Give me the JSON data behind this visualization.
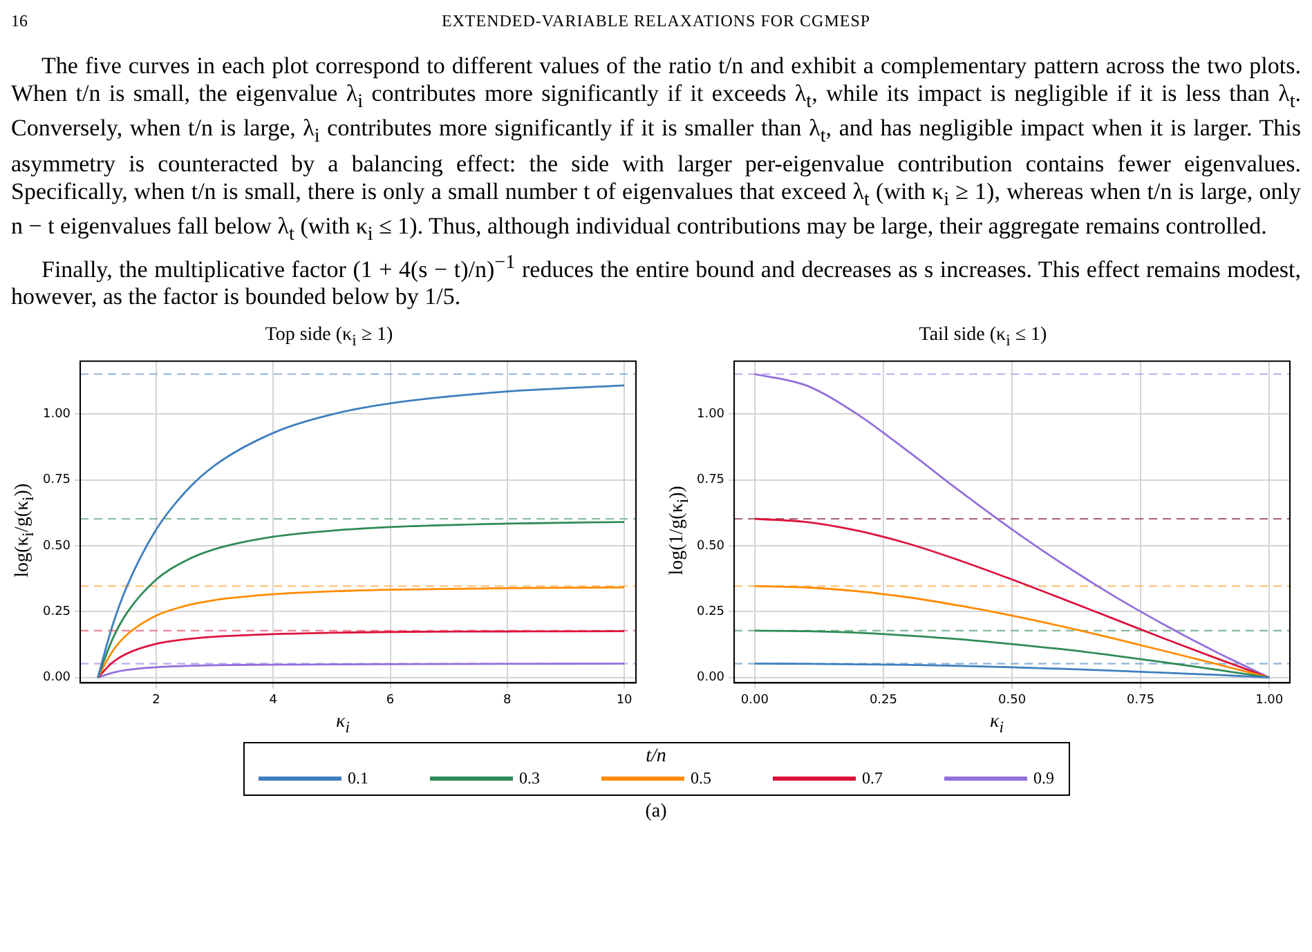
{
  "chart_data": [
    {
      "type": "line",
      "title": "Top side (κ$_{i}$ ≥ 1)",
      "xlabel": "κ$_{i}$",
      "ylabel": "log(κ$_{i}$/g(κ$_{i}$))",
      "legend_title": "t/n",
      "legend": "bottom",
      "grid": true,
      "marker": "none",
      "line_style": "solid",
      "annotations": [
        "16",
        "EXTENDED-VARIABLE RELAXATIONS FOR CGMESP",
        "The five curves in each plot correspond to different values of the ratio t/n and exhibit a complementary pattern across the two plots. When t/n is small, the eigenvalue λ$_{i}$ contributes more significantly if it exceeds λ$_{t}$, while its impact is negligible if it is less than λ$_{t}$. Conversely, when t/n is large, λ$_{i}$ contributes more significantly if it is smaller than λ$_{t}$, and has negligible impact when it is larger. This asymmetry is counteracted by a balancing effect: the side with larger per-eigenvalue contribution contains fewer eigenvalues. Specifically, when t/n is small, there is only a small number t of eigenvalues that exceed λ$_{t}$ (with κ$_{i}$ ≥ 1), whereas when t/n is large, only n − t eigenvalues fall below λ$_{t}$ (with κ$_{i}$ ≤ 1). Thus, although individual contributions may be large, their aggregate remains controlled.",
        "Finally, the multiplicative factor (1 + 4(s − t)/n)$^{−1}$ reduces the entire bound and decreases as s increases. This effect remains modest, however, as the factor is bounded below by 1/5.",
        "(a)"
      ],
      "x": [
        1,
        1.25,
        1.5,
        2,
        2.5,
        3,
        4,
        5,
        6,
        8,
        10
      ],
      "series": [
        {
          "name": "0.1",
          "color": "#3f7fbf",
          "values": [
            0,
            0.196,
            0.347,
            0.562,
            0.705,
            0.805,
            0.928,
            0.998,
            1.04,
            1.085,
            1.108
          ]
        },
        {
          "name": "0.3",
          "color": "#2e8b57",
          "values": [
            0,
            0.145,
            0.246,
            0.372,
            0.443,
            0.487,
            0.534,
            0.557,
            0.571,
            0.584,
            0.59
          ]
        },
        {
          "name": "0.5",
          "color": "#ff8c00",
          "values": [
            0,
            0.099,
            0.163,
            0.235,
            0.272,
            0.294,
            0.316,
            0.327,
            0.333,
            0.339,
            0.342
          ]
        },
        {
          "name": "0.7",
          "color": "#dc143c",
          "values": [
            0,
            0.057,
            0.091,
            0.128,
            0.145,
            0.155,
            0.165,
            0.17,
            0.173,
            0.175,
            0.176
          ]
        },
        {
          "name": "0.9",
          "color": "#9370db",
          "values": [
            0,
            0.018,
            0.029,
            0.039,
            0.044,
            0.047,
            0.049,
            0.05,
            0.051,
            0.052,
            0.053
          ]
        }
      ],
      "ref_lines": [
        {
          "axis": "y",
          "value": 1.151,
          "color": "#8fb4d8",
          "line_style": "dashed"
        },
        {
          "axis": "y",
          "value": 0.602,
          "color": "#84b89a",
          "line_style": "dashed"
        },
        {
          "axis": "y",
          "value": 0.347,
          "color": "#ffc27a",
          "line_style": "dashed"
        },
        {
          "axis": "y",
          "value": 0.178,
          "color": "#ee8598",
          "line_style": "dashed"
        },
        {
          "axis": "y",
          "value": 0.053,
          "color": "#bfaaee",
          "line_style": "dashed"
        }
      ],
      "xlim": [
        0.7,
        10.2
      ],
      "xticks": [
        2,
        4,
        6,
        8,
        10
      ],
      "ylim": [
        -0.02,
        1.2
      ],
      "yticks": [
        {
          "value": 0,
          "label": "0.00"
        },
        {
          "value": 0.25,
          "label": "0.25"
        },
        {
          "value": 0.5,
          "label": "0.50"
        },
        {
          "value": 0.75,
          "label": "0.75"
        },
        {
          "value": 1,
          "label": "1.00"
        }
      ]
    },
    {
      "type": "line",
      "title": "Tail side (κ$_{i}$ ≤ 1)",
      "xlabel": "κ$_{i}$",
      "ylabel": "log(1/g(κ$_{i}$))",
      "grid": true,
      "marker": "none",
      "line_style": "solid",
      "x": [
        0,
        0.1,
        0.2,
        0.3,
        0.4,
        0.5,
        0.6,
        0.7,
        0.8,
        0.9,
        1
      ],
      "series": [
        {
          "color": "#3f7fbf",
          "values": [
            0.053,
            0.052,
            0.05,
            0.048,
            0.044,
            0.039,
            0.033,
            0.026,
            0.018,
            0.01,
            0
          ]
        },
        {
          "color": "#2e8b57",
          "values": [
            0.178,
            0.176,
            0.17,
            0.159,
            0.145,
            0.127,
            0.107,
            0.083,
            0.057,
            0.029,
            0
          ]
        },
        {
          "color": "#ff8c00",
          "values": [
            0.347,
            0.342,
            0.327,
            0.304,
            0.272,
            0.235,
            0.193,
            0.147,
            0.099,
            0.05,
            0
          ]
        },
        {
          "color": "#dc143c",
          "values": [
            0.602,
            0.59,
            0.557,
            0.507,
            0.443,
            0.372,
            0.297,
            0.221,
            0.145,
            0.071,
            0
          ]
        },
        {
          "color": "#9370db",
          "values": [
            1.151,
            1.108,
            0.998,
            0.855,
            0.705,
            0.562,
            0.429,
            0.307,
            0.196,
            0.094,
            0
          ]
        }
      ],
      "ref_lines": [
        {
          "axis": "y",
          "value": 1.151,
          "color": "#bfaaee",
          "line_style": "dashed"
        },
        {
          "axis": "y",
          "value": 0.602,
          "color": "#a8606e",
          "line_style": "dashed"
        },
        {
          "axis": "y",
          "value": 0.347,
          "color": "#ffc27a",
          "line_style": "dashed"
        },
        {
          "axis": "y",
          "value": 0.178,
          "color": "#84b89a",
          "line_style": "dashed"
        },
        {
          "axis": "y",
          "value": 0.053,
          "color": "#8fb4d8",
          "line_style": "dashed"
        }
      ],
      "xlim": [
        -0.04,
        1.04
      ],
      "xticks": [
        {
          "value": 0,
          "label": "0.00"
        },
        {
          "value": 0.25,
          "label": "0.25"
        },
        {
          "value": 0.5,
          "label": "0.50"
        },
        {
          "value": 0.75,
          "label": "0.75"
        },
        {
          "value": 1,
          "label": "1.00"
        }
      ],
      "ylim": [
        -0.02,
        1.2
      ],
      "yticks": [
        {
          "value": 0,
          "label": "0.00"
        },
        {
          "value": 0.25,
          "label": "0.25"
        },
        {
          "value": 0.5,
          "label": "0.50"
        },
        {
          "value": 0.75,
          "label": "0.75"
        },
        {
          "value": 1,
          "label": "1.00"
        }
      ]
    }
  ]
}
